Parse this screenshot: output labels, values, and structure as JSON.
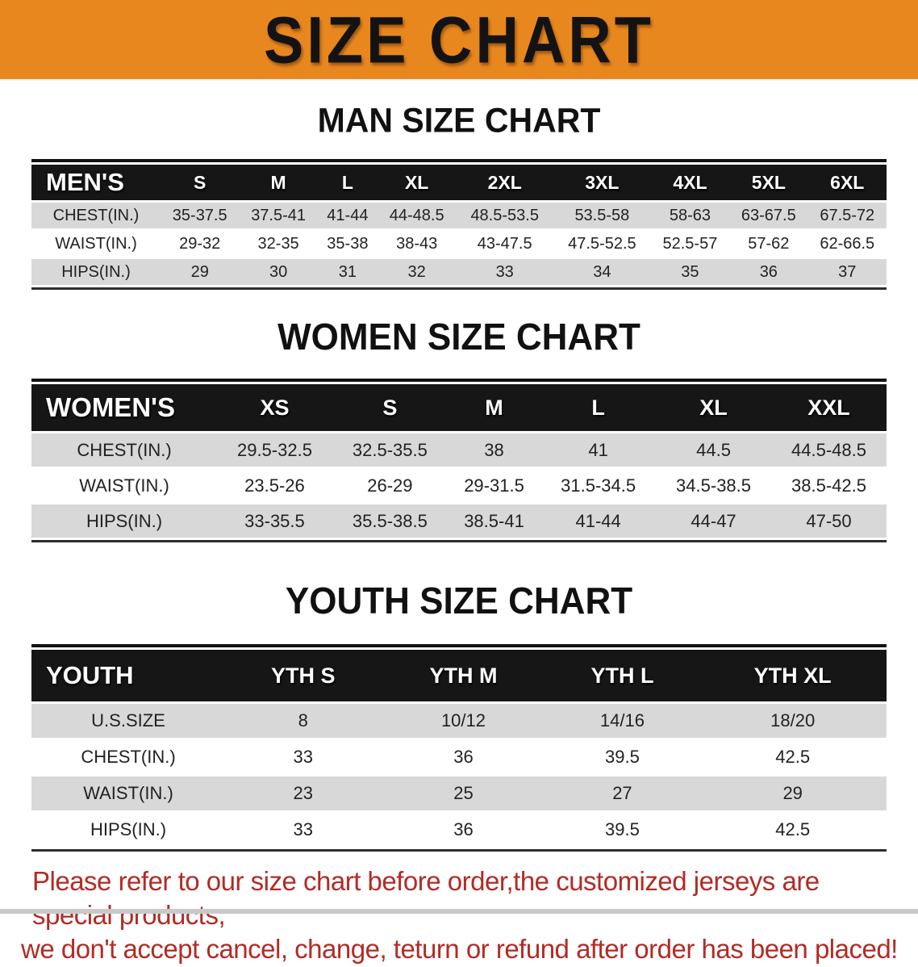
{
  "banner": {
    "title": "SIZE CHART",
    "bg_color": "#E9871F"
  },
  "sections": [
    {
      "heading": "MAN SIZE CHART",
      "table": {
        "label": "MEN'S",
        "sizes": [
          "S",
          "M",
          "L",
          "XL",
          "2XL",
          "3XL",
          "4XL",
          "5XL",
          "6XL"
        ],
        "rows": [
          {
            "label": "CHEST(IN.)",
            "values": [
              "35-37.5",
              "37.5-41",
              "41-44",
              "44-48.5",
              "48.5-53.5",
              "53.5-58",
              "58-63",
              "63-67.5",
              "67.5-72"
            ]
          },
          {
            "label": "WAIST(IN.)",
            "values": [
              "29-32",
              "32-35",
              "35-38",
              "38-43",
              "43-47.5",
              "47.5-52.5",
              "52.5-57",
              "57-62",
              "62-66.5"
            ]
          },
          {
            "label": "HIPS(IN.)",
            "values": [
              "29",
              "30",
              "31",
              "32",
              "33",
              "34",
              "35",
              "36",
              "37"
            ]
          }
        ]
      }
    },
    {
      "heading": "WOMEN SIZE CHART",
      "table": {
        "label": "WOMEN'S",
        "sizes": [
          "XS",
          "S",
          "M",
          "L",
          "XL",
          "XXL"
        ],
        "rows": [
          {
            "label": "CHEST(IN.)",
            "values": [
              "29.5-32.5",
              "32.5-35.5",
              "38",
              "41",
              "44.5",
              "44.5-48.5"
            ]
          },
          {
            "label": "WAIST(IN.)",
            "values": [
              "23.5-26",
              "26-29",
              "29-31.5",
              "31.5-34.5",
              "34.5-38.5",
              "38.5-42.5"
            ]
          },
          {
            "label": "HIPS(IN.)",
            "values": [
              "33-35.5",
              "35.5-38.5",
              "38.5-41",
              "41-44",
              "44-47",
              "47-50"
            ]
          }
        ]
      }
    },
    {
      "heading": "YOUTH SIZE CHART",
      "table": {
        "label": "YOUTH",
        "sizes": [
          "YTH S",
          "YTH M",
          "YTH L",
          "YTH XL"
        ],
        "rows": [
          {
            "label": "U.S.SIZE",
            "values": [
              "8",
              "10/12",
              "14/16",
              "18/20"
            ]
          },
          {
            "label": "CHEST(IN.)",
            "values": [
              "33",
              "36",
              "39.5",
              "42.5"
            ]
          },
          {
            "label": "WAIST(IN.)",
            "values": [
              "23",
              "25",
              "27",
              "29"
            ]
          },
          {
            "label": "HIPS(IN.)",
            "values": [
              "33",
              "36",
              "39.5",
              "42.5"
            ]
          }
        ]
      }
    }
  ],
  "disclaimer": {
    "line1": "Please refer to our size chart before order,the customized jerseys are special products,",
    "line2": "we don't accept cancel, change, teturn or refund after order has been placed!",
    "color": "#B22B25"
  }
}
